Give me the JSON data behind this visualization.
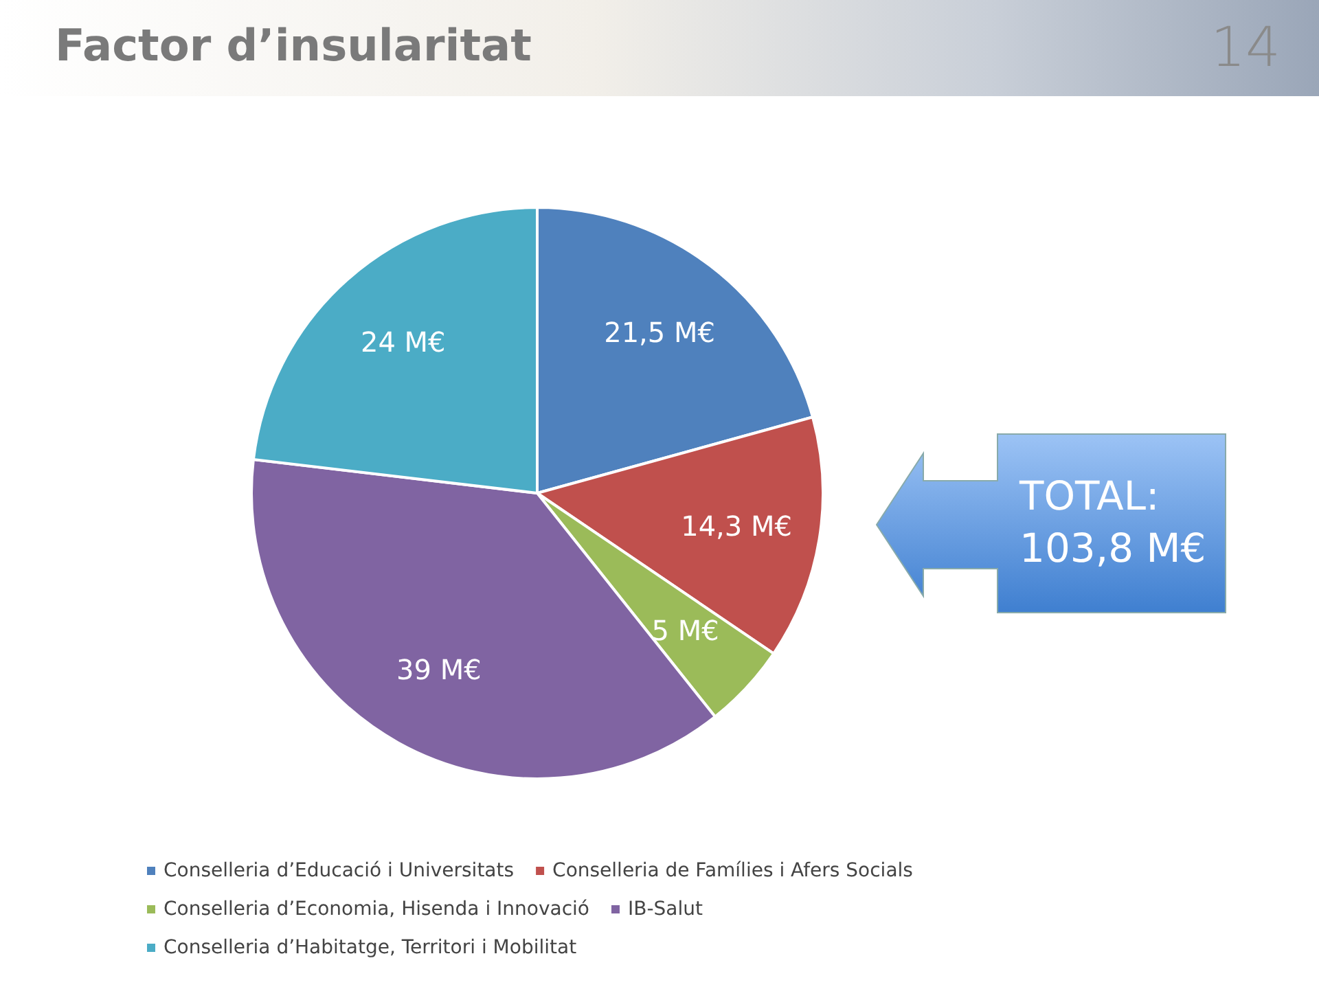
{
  "chart_data": {
    "type": "pie",
    "title": "Factor d’insularitat",
    "categories": [
      "Conselleria d’Educació i Universitats",
      "Conselleria de Famílies i Afers Socials",
      "Conselleria d’Economia, Hisenda i Innovació",
      "IB-Salut",
      "Conselleria d’Habitatge, Territori i Mobilitat"
    ],
    "values": [
      21.5,
      14.3,
      5,
      39,
      24
    ],
    "value_labels": [
      "21,5 M€",
      "14,3 M€",
      "5 M€",
      "39 M€",
      "24 M€"
    ],
    "colors": [
      "#4f81bd",
      "#c0504d",
      "#9bbb59",
      "#8064a2",
      "#4bacc6"
    ],
    "legend": "bottom",
    "annotations": [
      "14",
      "TOTAL: 103,8 M€"
    ]
  }
}
